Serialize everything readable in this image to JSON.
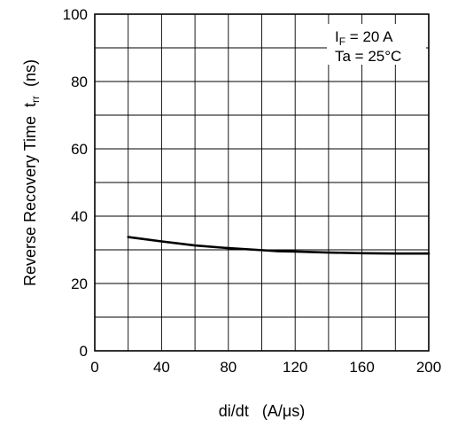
{
  "chart_data": {
    "type": "line",
    "title": "",
    "xlabel": "di/dt   (A/μs)",
    "ylabel_main": "Reverse Recovery Time  t",
    "ylabel_sub": "rr",
    "ylabel_unit": "  (ns)",
    "xlim": [
      0,
      200
    ],
    "ylim": [
      0,
      100
    ],
    "x_ticks": [
      0,
      40,
      80,
      120,
      160,
      200
    ],
    "y_ticks": [
      0,
      20,
      40,
      60,
      80,
      100
    ],
    "grid": true,
    "series": [
      {
        "x": [
          20,
          40,
          60,
          80,
          100,
          110,
          120,
          140,
          160,
          180,
          200
        ],
        "y": [
          33.8,
          32.5,
          31.3,
          30.5,
          29.9,
          29.6,
          29.5,
          29.2,
          29.0,
          28.9,
          28.9
        ],
        "color": "#000000"
      }
    ],
    "annotation": {
      "line1_main": "I",
      "line1_sub": "F",
      "line1_rest": " = 20 A",
      "line2": "Ta = 25°C"
    }
  }
}
